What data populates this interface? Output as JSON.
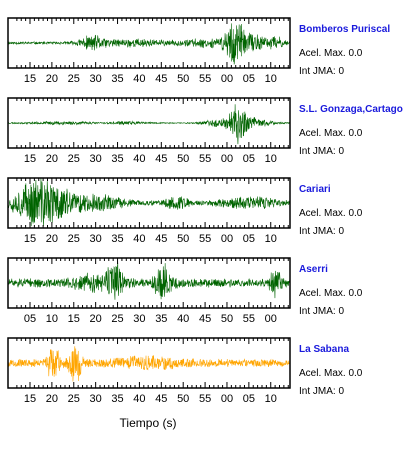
{
  "chart_data": [
    {
      "type": "line",
      "station": "Bomberos Puriscal",
      "accel_text": "Acel. Max. 0.0",
      "jma_text": "Int JMA: 0",
      "color": "#006400",
      "tick_labels": [
        "15",
        "20",
        "25",
        "30",
        "35",
        "40",
        "45",
        "50",
        "55",
        "00",
        "05",
        "10"
      ],
      "seed": 11,
      "noise": 0.06,
      "bursts": [
        [
          0.3,
          0.05,
          0.3
        ],
        [
          0.45,
          0.1,
          0.16
        ],
        [
          0.7,
          0.1,
          0.16
        ],
        [
          0.8,
          0.03,
          0.95
        ],
        [
          0.86,
          0.06,
          0.4
        ],
        [
          0.95,
          0.03,
          0.25
        ]
      ]
    },
    {
      "type": "line",
      "station": "S.L. Gonzaga,Cartago",
      "accel_text": "Acel. Max. 0.0",
      "jma_text": "Int JMA: 0",
      "color": "#006400",
      "tick_labels": [
        "15",
        "20",
        "25",
        "30",
        "35",
        "40",
        "45",
        "50",
        "55",
        "00",
        "05",
        "10"
      ],
      "seed": 23,
      "noise": 0.03,
      "bursts": [
        [
          0.2,
          0.1,
          0.06
        ],
        [
          0.42,
          0.05,
          0.06
        ],
        [
          0.76,
          0.06,
          0.18
        ],
        [
          0.82,
          0.03,
          0.95
        ],
        [
          0.88,
          0.05,
          0.2
        ]
      ]
    },
    {
      "type": "line",
      "station": "Cariari",
      "accel_text": "Acel. Max. 0.0",
      "jma_text": "Int JMA: 0",
      "color": "#006400",
      "tick_labels": [
        "15",
        "20",
        "25",
        "30",
        "35",
        "40",
        "45",
        "50",
        "55",
        "00",
        "05",
        "10"
      ],
      "seed": 37,
      "noise": 0.1,
      "bursts": [
        [
          0.1,
          0.08,
          0.95
        ],
        [
          0.18,
          0.08,
          0.4
        ],
        [
          0.32,
          0.1,
          0.3
        ],
        [
          0.6,
          0.04,
          0.3
        ],
        [
          0.85,
          0.1,
          0.25
        ]
      ]
    },
    {
      "type": "line",
      "station": "Aserri",
      "accel_text": "Acel. Max. 0.0",
      "jma_text": "Int JMA: 0",
      "color": "#006400",
      "tick_labels": [
        "05",
        "10",
        "15",
        "20",
        "25",
        "30",
        "35",
        "40",
        "45",
        "50",
        "55",
        "00"
      ],
      "seed": 51,
      "noise": 0.2,
      "bursts": [
        [
          0.3,
          0.06,
          0.35
        ],
        [
          0.38,
          0.03,
          0.75
        ],
        [
          0.55,
          0.03,
          0.75
        ],
        [
          0.95,
          0.02,
          0.5
        ]
      ]
    },
    {
      "type": "line",
      "station": "La Sabana",
      "accel_text": "Acel. Max. 0.0",
      "jma_text": "Int JMA: 0",
      "color": "#FFA500",
      "tick_labels": [
        "15",
        "20",
        "25",
        "30",
        "35",
        "40",
        "45",
        "50",
        "55",
        "00",
        "05",
        "10"
      ],
      "seed": 67,
      "noise": 0.18,
      "bursts": [
        [
          0.16,
          0.02,
          0.85
        ],
        [
          0.23,
          0.02,
          0.7
        ],
        [
          0.25,
          0.01,
          0.8
        ],
        [
          0.5,
          0.1,
          0.2
        ]
      ]
    }
  ],
  "xlabel": "Tiempo (s)"
}
